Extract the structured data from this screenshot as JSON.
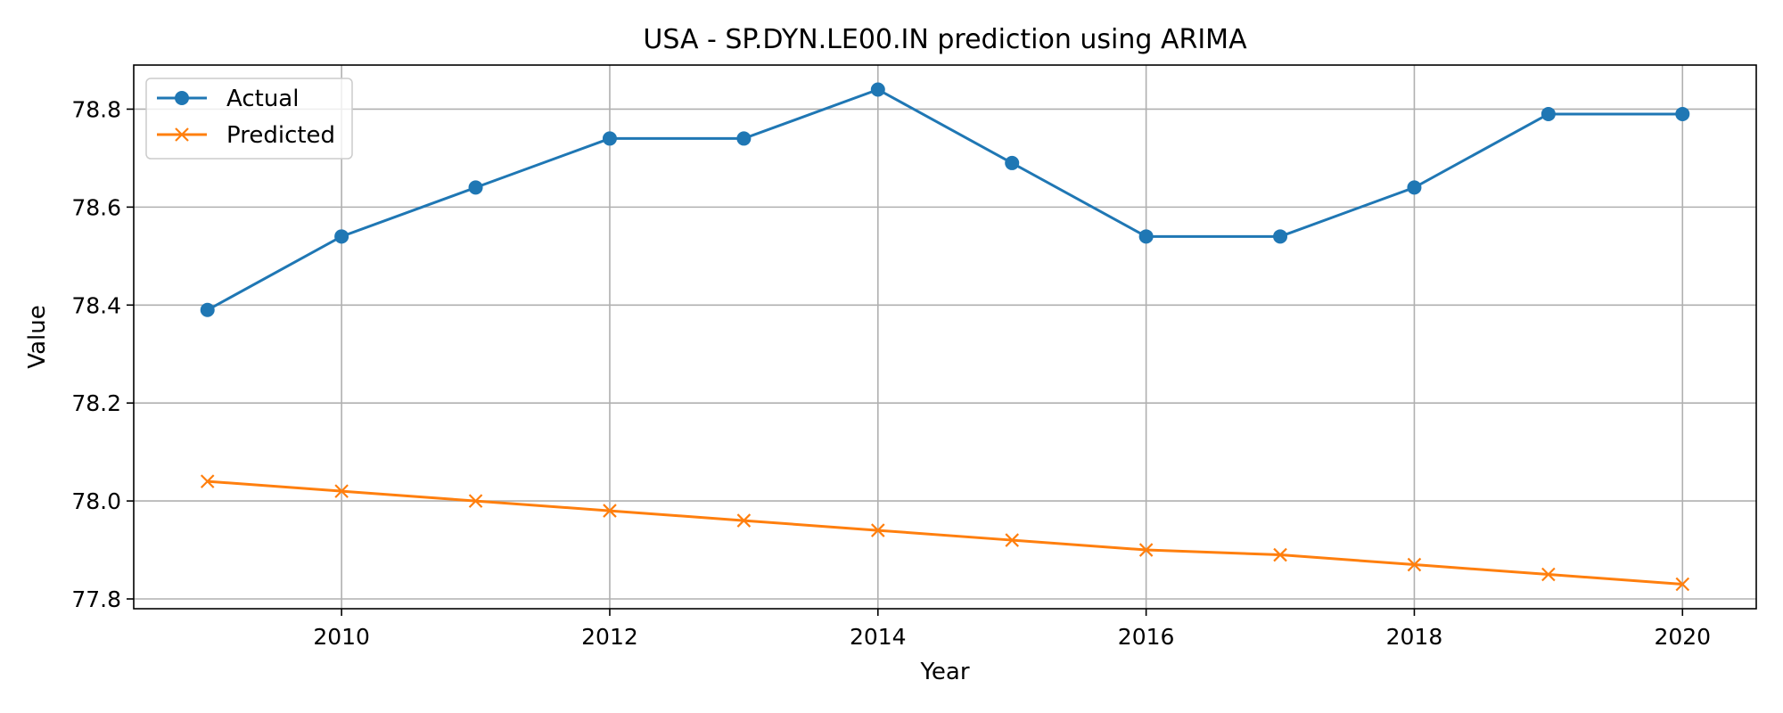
{
  "chart_data": {
    "type": "line",
    "title": "USA - SP.DYN.LE00.IN prediction using ARIMA",
    "xlabel": "Year",
    "ylabel": "Value",
    "x": [
      2009,
      2010,
      2011,
      2012,
      2013,
      2014,
      2015,
      2016,
      2017,
      2018,
      2019,
      2020
    ],
    "xlim": [
      2008.45,
      2020.55
    ],
    "ylim": [
      77.78,
      78.89
    ],
    "x_ticks": [
      2010,
      2012,
      2014,
      2016,
      2018,
      2020
    ],
    "y_ticks": [
      77.8,
      78.0,
      78.2,
      78.4,
      78.6,
      78.8
    ],
    "x_tick_labels": [
      "2010",
      "2012",
      "2014",
      "2016",
      "2018",
      "2020"
    ],
    "y_tick_labels": [
      "77.8",
      "78.0",
      "78.2",
      "78.4",
      "78.6",
      "78.8"
    ],
    "grid": true,
    "legend_position": "top-left",
    "series": [
      {
        "name": "Actual",
        "color": "#1f77b4",
        "marker": "circle",
        "values": [
          78.39,
          78.54,
          78.64,
          78.74,
          78.74,
          78.84,
          78.69,
          78.54,
          78.54,
          78.64,
          78.79,
          78.79
        ]
      },
      {
        "name": "Predicted",
        "color": "#ff7f0e",
        "marker": "x",
        "values": [
          78.04,
          78.02,
          78.0,
          77.98,
          77.96,
          77.94,
          77.92,
          77.9,
          77.89,
          77.87,
          77.85,
          77.83
        ]
      }
    ]
  }
}
